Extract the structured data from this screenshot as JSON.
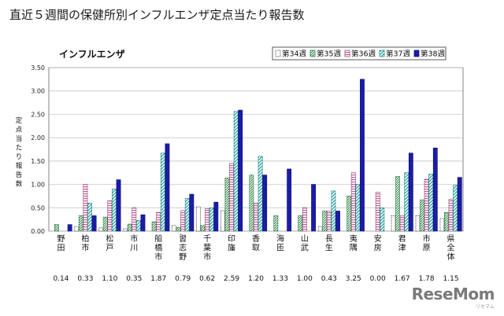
{
  "page_title": "直近５週間の保健所別インフルエンザ定点当たり報告数",
  "logo": {
    "text": "ReseMom",
    "sub": "リセマム"
  },
  "chart_data": {
    "type": "bar",
    "title": "インフルエンザ",
    "ylabel": "定点当たり報告数",
    "ylim": [
      0,
      3.5
    ],
    "yticks": [
      "0.00",
      "0.50",
      "1.00",
      "1.50",
      "2.00",
      "2.50",
      "3.00",
      "3.50"
    ],
    "grid": true,
    "legend_position": "top-right",
    "categories": [
      "野田",
      "柏市",
      "松戸",
      "市川",
      "船橋市",
      "習志野",
      "千葉市",
      "印旛",
      "香取",
      "海匝",
      "山武",
      "長生",
      "夷隅",
      "安房",
      "君津",
      "市原",
      "県全体"
    ],
    "series": [
      {
        "name": "第34週",
        "values": [
          0.0,
          0.1,
          0.07,
          0.05,
          0.0,
          0.12,
          0.52,
          0.44,
          0.0,
          0.0,
          0.0,
          0.1,
          0.0,
          0.0,
          0.33,
          0.33,
          0.27
        ]
      },
      {
        "name": "第35週",
        "values": [
          0.14,
          0.33,
          0.3,
          0.15,
          0.2,
          0.08,
          0.12,
          1.14,
          1.2,
          0.33,
          0.33,
          0.43,
          0.75,
          0.0,
          1.17,
          0.67,
          0.4
        ]
      },
      {
        "name": "第36週",
        "values": [
          0.0,
          1.0,
          0.65,
          0.5,
          0.4,
          0.44,
          0.48,
          1.45,
          0.6,
          0.0,
          0.5,
          0.43,
          1.25,
          0.83,
          0.33,
          1.11,
          0.68
        ]
      },
      {
        "name": "第37週",
        "values": [
          0.0,
          0.6,
          0.9,
          0.23,
          1.67,
          0.7,
          0.5,
          2.56,
          1.6,
          0.0,
          0.0,
          0.86,
          1.0,
          0.5,
          1.25,
          1.22,
          0.98
        ]
      },
      {
        "name": "第38週",
        "values": [
          0.14,
          0.33,
          1.1,
          0.35,
          1.87,
          0.79,
          0.62,
          2.59,
          1.2,
          1.33,
          1.0,
          0.43,
          3.25,
          0.0,
          1.67,
          1.78,
          1.15
        ]
      }
    ],
    "week38_labels": [
      "0.14",
      "0.33",
      "1.10",
      "0.35",
      "1.87",
      "0.79",
      "0.62",
      "2.59",
      "1.20",
      "1.33",
      "1.00",
      "0.43",
      "3.25",
      "0.00",
      "1.67",
      "1.78",
      "1.15"
    ]
  }
}
